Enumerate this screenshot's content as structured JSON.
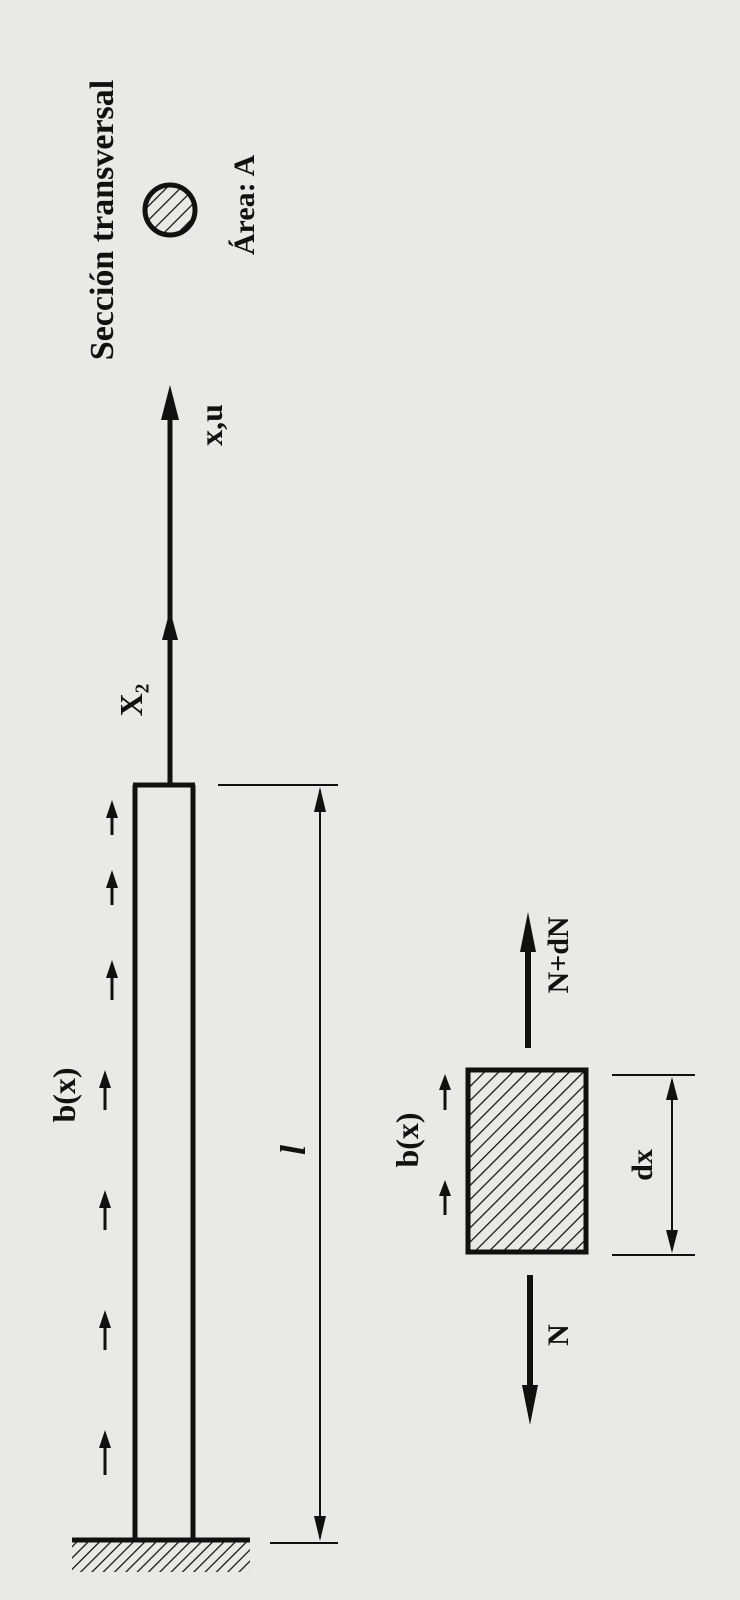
{
  "labels": {
    "section_title": "Sección transversal",
    "area": "Área: A",
    "axis": "x,u",
    "end_force": "X₂",
    "distributed_load": "b(x)",
    "length": "l",
    "element_load": "b(x)",
    "force_left": "N",
    "force_right": "N+dN",
    "element_length": "dx"
  },
  "colors": {
    "ink": "#111111",
    "paper": "#e9e9e7"
  }
}
